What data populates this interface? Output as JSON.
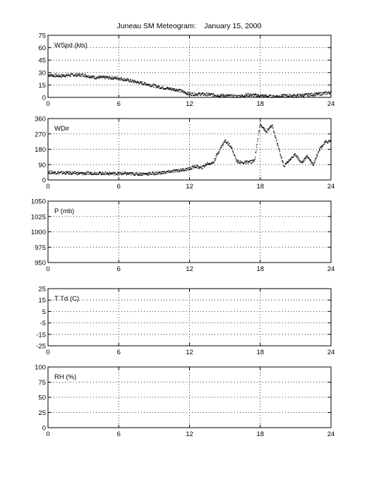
{
  "title": "Juneau SM Meteogram:    January 15, 2000",
  "chart_data": [
    {
      "type": "scatter",
      "panel_label": "WSpd (kts)",
      "xlim": [
        0,
        24
      ],
      "xticks": [
        "0",
        "6",
        "12",
        "18",
        "24"
      ],
      "ylim": [
        0,
        75
      ],
      "yticks": [
        "0",
        "15",
        "30",
        "45",
        "60",
        "75"
      ],
      "grid": "dotted",
      "x": [
        0,
        1,
        2,
        3,
        4,
        5,
        6,
        7,
        8,
        9,
        10,
        11,
        12,
        13,
        14,
        15,
        16,
        17,
        18,
        19,
        20,
        21,
        22,
        23,
        24
      ],
      "y": [
        27,
        26,
        27,
        27,
        24,
        24,
        23,
        20,
        17,
        14,
        11,
        9,
        4,
        4,
        3,
        2,
        1,
        3,
        2,
        1,
        2,
        2,
        3,
        4,
        6
      ]
    },
    {
      "type": "scatter",
      "panel_label": "WDir",
      "xlim": [
        0,
        24
      ],
      "xticks": [
        "0",
        "6",
        "12",
        "18",
        "24"
      ],
      "ylim": [
        0,
        360
      ],
      "yticks": [
        "0",
        "90",
        "180",
        "270",
        "360"
      ],
      "grid": "dotted",
      "x": [
        0,
        1,
        2,
        3,
        4,
        5,
        6,
        7,
        8,
        9,
        10,
        11,
        12,
        12.5,
        13,
        13.5,
        14,
        14.5,
        15,
        15.5,
        16,
        16.5,
        17,
        17.5,
        18,
        18.5,
        19,
        19.5,
        20,
        20.5,
        21,
        21.5,
        22,
        22.5,
        23,
        23.5,
        24
      ],
      "y": [
        45,
        42,
        40,
        38,
        40,
        38,
        38,
        36,
        35,
        38,
        45,
        55,
        65,
        80,
        70,
        95,
        100,
        170,
        230,
        200,
        110,
        100,
        105,
        110,
        330,
        280,
        320,
        200,
        80,
        120,
        150,
        100,
        140,
        90,
        180,
        220,
        230
      ]
    },
    {
      "type": "scatter",
      "panel_label": "P (mb)",
      "xlim": [
        0,
        24
      ],
      "xticks": [
        "0",
        "6",
        "12",
        "18",
        "24"
      ],
      "ylim": [
        950,
        1050
      ],
      "yticks": [
        "950",
        "975",
        "1000",
        "1025",
        "1050"
      ],
      "grid": "dotted",
      "x": [],
      "y": []
    },
    {
      "type": "scatter",
      "panel_label": "T Td (C)",
      "xlim": [
        0,
        24
      ],
      "xticks": [
        "0",
        "6",
        "12",
        "18",
        "24"
      ],
      "ylim": [
        -25,
        25
      ],
      "yticks": [
        "-25",
        "-15",
        "-5",
        "5",
        "15",
        "25"
      ],
      "grid": "dotted",
      "x": [],
      "y": []
    },
    {
      "type": "scatter",
      "panel_label": "RH (%)",
      "xlim": [
        0,
        24
      ],
      "xticks": [
        "0",
        "6",
        "12",
        "18",
        "24"
      ],
      "ylim": [
        0,
        100
      ],
      "yticks": [
        "0",
        "25",
        "50",
        "75",
        "100"
      ],
      "grid": "dotted",
      "x": [],
      "y": []
    }
  ]
}
